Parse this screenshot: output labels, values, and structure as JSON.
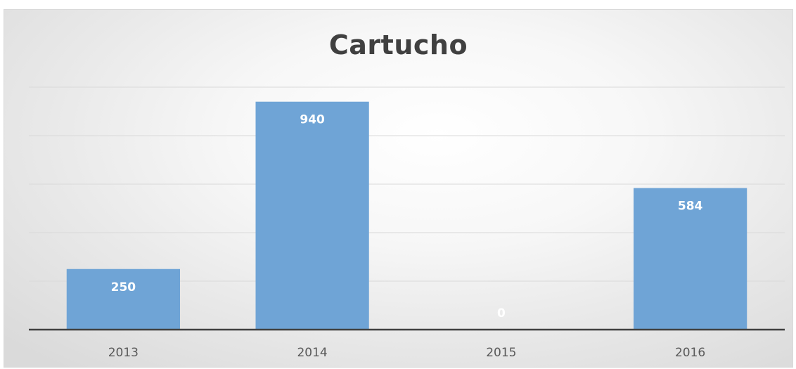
{
  "chart_data": {
    "type": "bar",
    "title": "Cartucho",
    "xlabel": "",
    "ylabel": "",
    "categories": [
      "2013",
      "2014",
      "2015",
      "2016"
    ],
    "values": [
      250,
      940,
      0,
      584
    ],
    "ylim": [
      0,
      1000
    ],
    "grid": true,
    "gridlines_at": [
      200,
      400,
      600,
      800,
      1000
    ],
    "legend": "none",
    "show_value_labels": true,
    "colors": {
      "bar": "#6fa4d6",
      "gridline": "#d9d9d9",
      "axis": "#404040",
      "title": "#404040",
      "tick_label": "#595959",
      "data_label": "#ffffff"
    }
  }
}
